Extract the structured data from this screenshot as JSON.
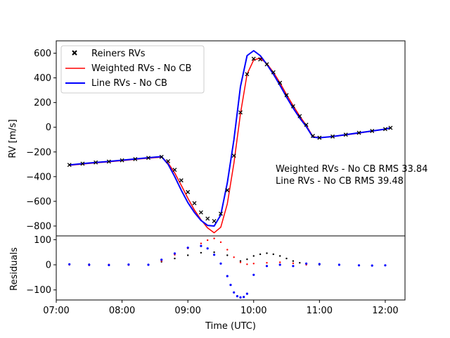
{
  "chart_data": [
    {
      "type": "line",
      "panel": "main",
      "ylabel": "RV [m/s]",
      "ylim": [
        -880,
        700
      ],
      "yticks": [
        600,
        400,
        200,
        0,
        -200,
        -400,
        -600,
        -800
      ],
      "xlim": [
        7.0,
        12.3
      ],
      "grid": false,
      "legend_placement": "top-left",
      "series": [
        {
          "name": "Reiners RVs",
          "style": "x-markers",
          "color": "#000000",
          "x": [
            7.2,
            7.4,
            7.6,
            7.8,
            8.0,
            8.2,
            8.4,
            8.6,
            8.7,
            8.8,
            8.9,
            9.0,
            9.1,
            9.2,
            9.3,
            9.4,
            9.5,
            9.6,
            9.7,
            9.8,
            9.9,
            10.0,
            10.1,
            10.2,
            10.3,
            10.4,
            10.5,
            10.6,
            10.7,
            10.8,
            10.9,
            11.0,
            11.2,
            11.4,
            11.6,
            11.8,
            12.0,
            12.08
          ],
          "y": [
            -305,
            -295,
            -285,
            -278,
            -268,
            -258,
            -248,
            -240,
            -275,
            -345,
            -430,
            -525,
            -615,
            -690,
            -740,
            -760,
            -700,
            -510,
            -230,
            120,
            430,
            555,
            550,
            510,
            445,
            360,
            260,
            170,
            90,
            20,
            -70,
            -85,
            -75,
            -60,
            -45,
            -30,
            -15,
            -5
          ]
        },
        {
          "name": "Weighted RVs - No CB",
          "style": "line",
          "color": "#ff0000",
          "x": [
            7.2,
            7.4,
            7.6,
            7.8,
            8.0,
            8.2,
            8.4,
            8.6,
            8.7,
            8.8,
            8.9,
            9.0,
            9.1,
            9.2,
            9.3,
            9.4,
            9.5,
            9.6,
            9.7,
            9.8,
            9.9,
            10.0,
            10.1,
            10.2,
            10.3,
            10.4,
            10.5,
            10.6,
            10.7,
            10.8,
            10.9,
            11.0,
            11.2,
            11.4,
            11.6,
            11.8,
            12.0,
            12.08
          ],
          "y": [
            -308,
            -298,
            -288,
            -280,
            -270,
            -260,
            -250,
            -242,
            -290,
            -370,
            -470,
            -575,
            -670,
            -750,
            -815,
            -855,
            -810,
            -620,
            -290,
            110,
            430,
            545,
            560,
            515,
            445,
            360,
            265,
            175,
            90,
            15,
            -75,
            -85,
            -75,
            -62,
            -47,
            -32,
            -15,
            -5
          ]
        },
        {
          "name": "Line RVs - No CB",
          "style": "line",
          "color": "#0000ff",
          "x": [
            7.2,
            7.4,
            7.6,
            7.8,
            8.0,
            8.2,
            8.4,
            8.6,
            8.7,
            8.8,
            8.9,
            9.0,
            9.1,
            9.2,
            9.3,
            9.4,
            9.5,
            9.6,
            9.7,
            9.8,
            9.9,
            10.0,
            10.1,
            10.2,
            10.3,
            10.4,
            10.5,
            10.6,
            10.7,
            10.8,
            10.9,
            11.0,
            11.2,
            11.4,
            11.6,
            11.8,
            12.0,
            12.08
          ],
          "y": [
            -305,
            -295,
            -285,
            -277,
            -267,
            -257,
            -247,
            -238,
            -300,
            -400,
            -510,
            -610,
            -690,
            -755,
            -795,
            -800,
            -710,
            -450,
            -100,
            330,
            580,
            620,
            580,
            510,
            430,
            340,
            245,
            155,
            75,
            5,
            -80,
            -85,
            -75,
            -60,
            -45,
            -30,
            -15,
            -5
          ]
        }
      ],
      "annotations": [
        "Weighted RVs - No CB RMS 33.84",
        "Line RVs - No CB RMS 39.48"
      ]
    },
    {
      "type": "scatter",
      "panel": "residuals",
      "ylabel": "Residuals",
      "xlabel": "Time (UTC)",
      "ylim": [
        -140,
        115
      ],
      "yticks": [
        100,
        0,
        -100
      ],
      "xlim": [
        7.0,
        12.3
      ],
      "xticks": [
        "07:00",
        "08:00",
        "09:00",
        "10:00",
        "11:00",
        "12:00"
      ],
      "xtick_values": [
        7,
        8,
        9,
        10,
        11,
        12
      ],
      "grid": false,
      "series": [
        {
          "color": "#000000",
          "x": [
            7.2,
            7.5,
            7.8,
            8.1,
            8.4,
            8.6,
            8.8,
            9.0,
            9.2,
            9.4,
            9.6,
            9.8,
            9.9,
            10.0,
            10.1,
            10.2,
            10.3,
            10.4,
            10.5,
            10.6,
            10.7,
            10.8,
            11.0
          ],
          "y": [
            0,
            2,
            -2,
            0,
            1,
            12,
            25,
            38,
            48,
            50,
            38,
            15,
            22,
            35,
            42,
            46,
            42,
            35,
            25,
            15,
            8,
            3,
            0
          ]
        },
        {
          "color": "#ff0000",
          "x": [
            7.2,
            7.5,
            7.8,
            8.1,
            8.4,
            8.6,
            8.8,
            9.0,
            9.2,
            9.3,
            9.4,
            9.5,
            9.6,
            9.7,
            9.8,
            9.9,
            10.0,
            10.2,
            10.4,
            10.6,
            10.8
          ],
          "y": [
            0,
            -2,
            1,
            -1,
            0,
            15,
            40,
            65,
            85,
            98,
            105,
            90,
            60,
            30,
            10,
            2,
            5,
            8,
            10,
            6,
            0
          ]
        },
        {
          "color": "#0000ff",
          "x": [
            7.2,
            7.5,
            7.8,
            8.1,
            8.4,
            8.6,
            8.8,
            9.0,
            9.2,
            9.3,
            9.4,
            9.5,
            9.6,
            9.65,
            9.7,
            9.75,
            9.8,
            9.85,
            9.9,
            10.0,
            10.2,
            10.4,
            10.6,
            10.8,
            11.0,
            11.3,
            11.6,
            11.8,
            12.0
          ],
          "y": [
            2,
            0,
            -1,
            1,
            0,
            20,
            45,
            68,
            75,
            65,
            40,
            5,
            -45,
            -80,
            -110,
            -125,
            -130,
            -128,
            -115,
            -40,
            -5,
            0,
            -5,
            5,
            3,
            0,
            -2,
            -3,
            -2
          ]
        }
      ]
    }
  ]
}
